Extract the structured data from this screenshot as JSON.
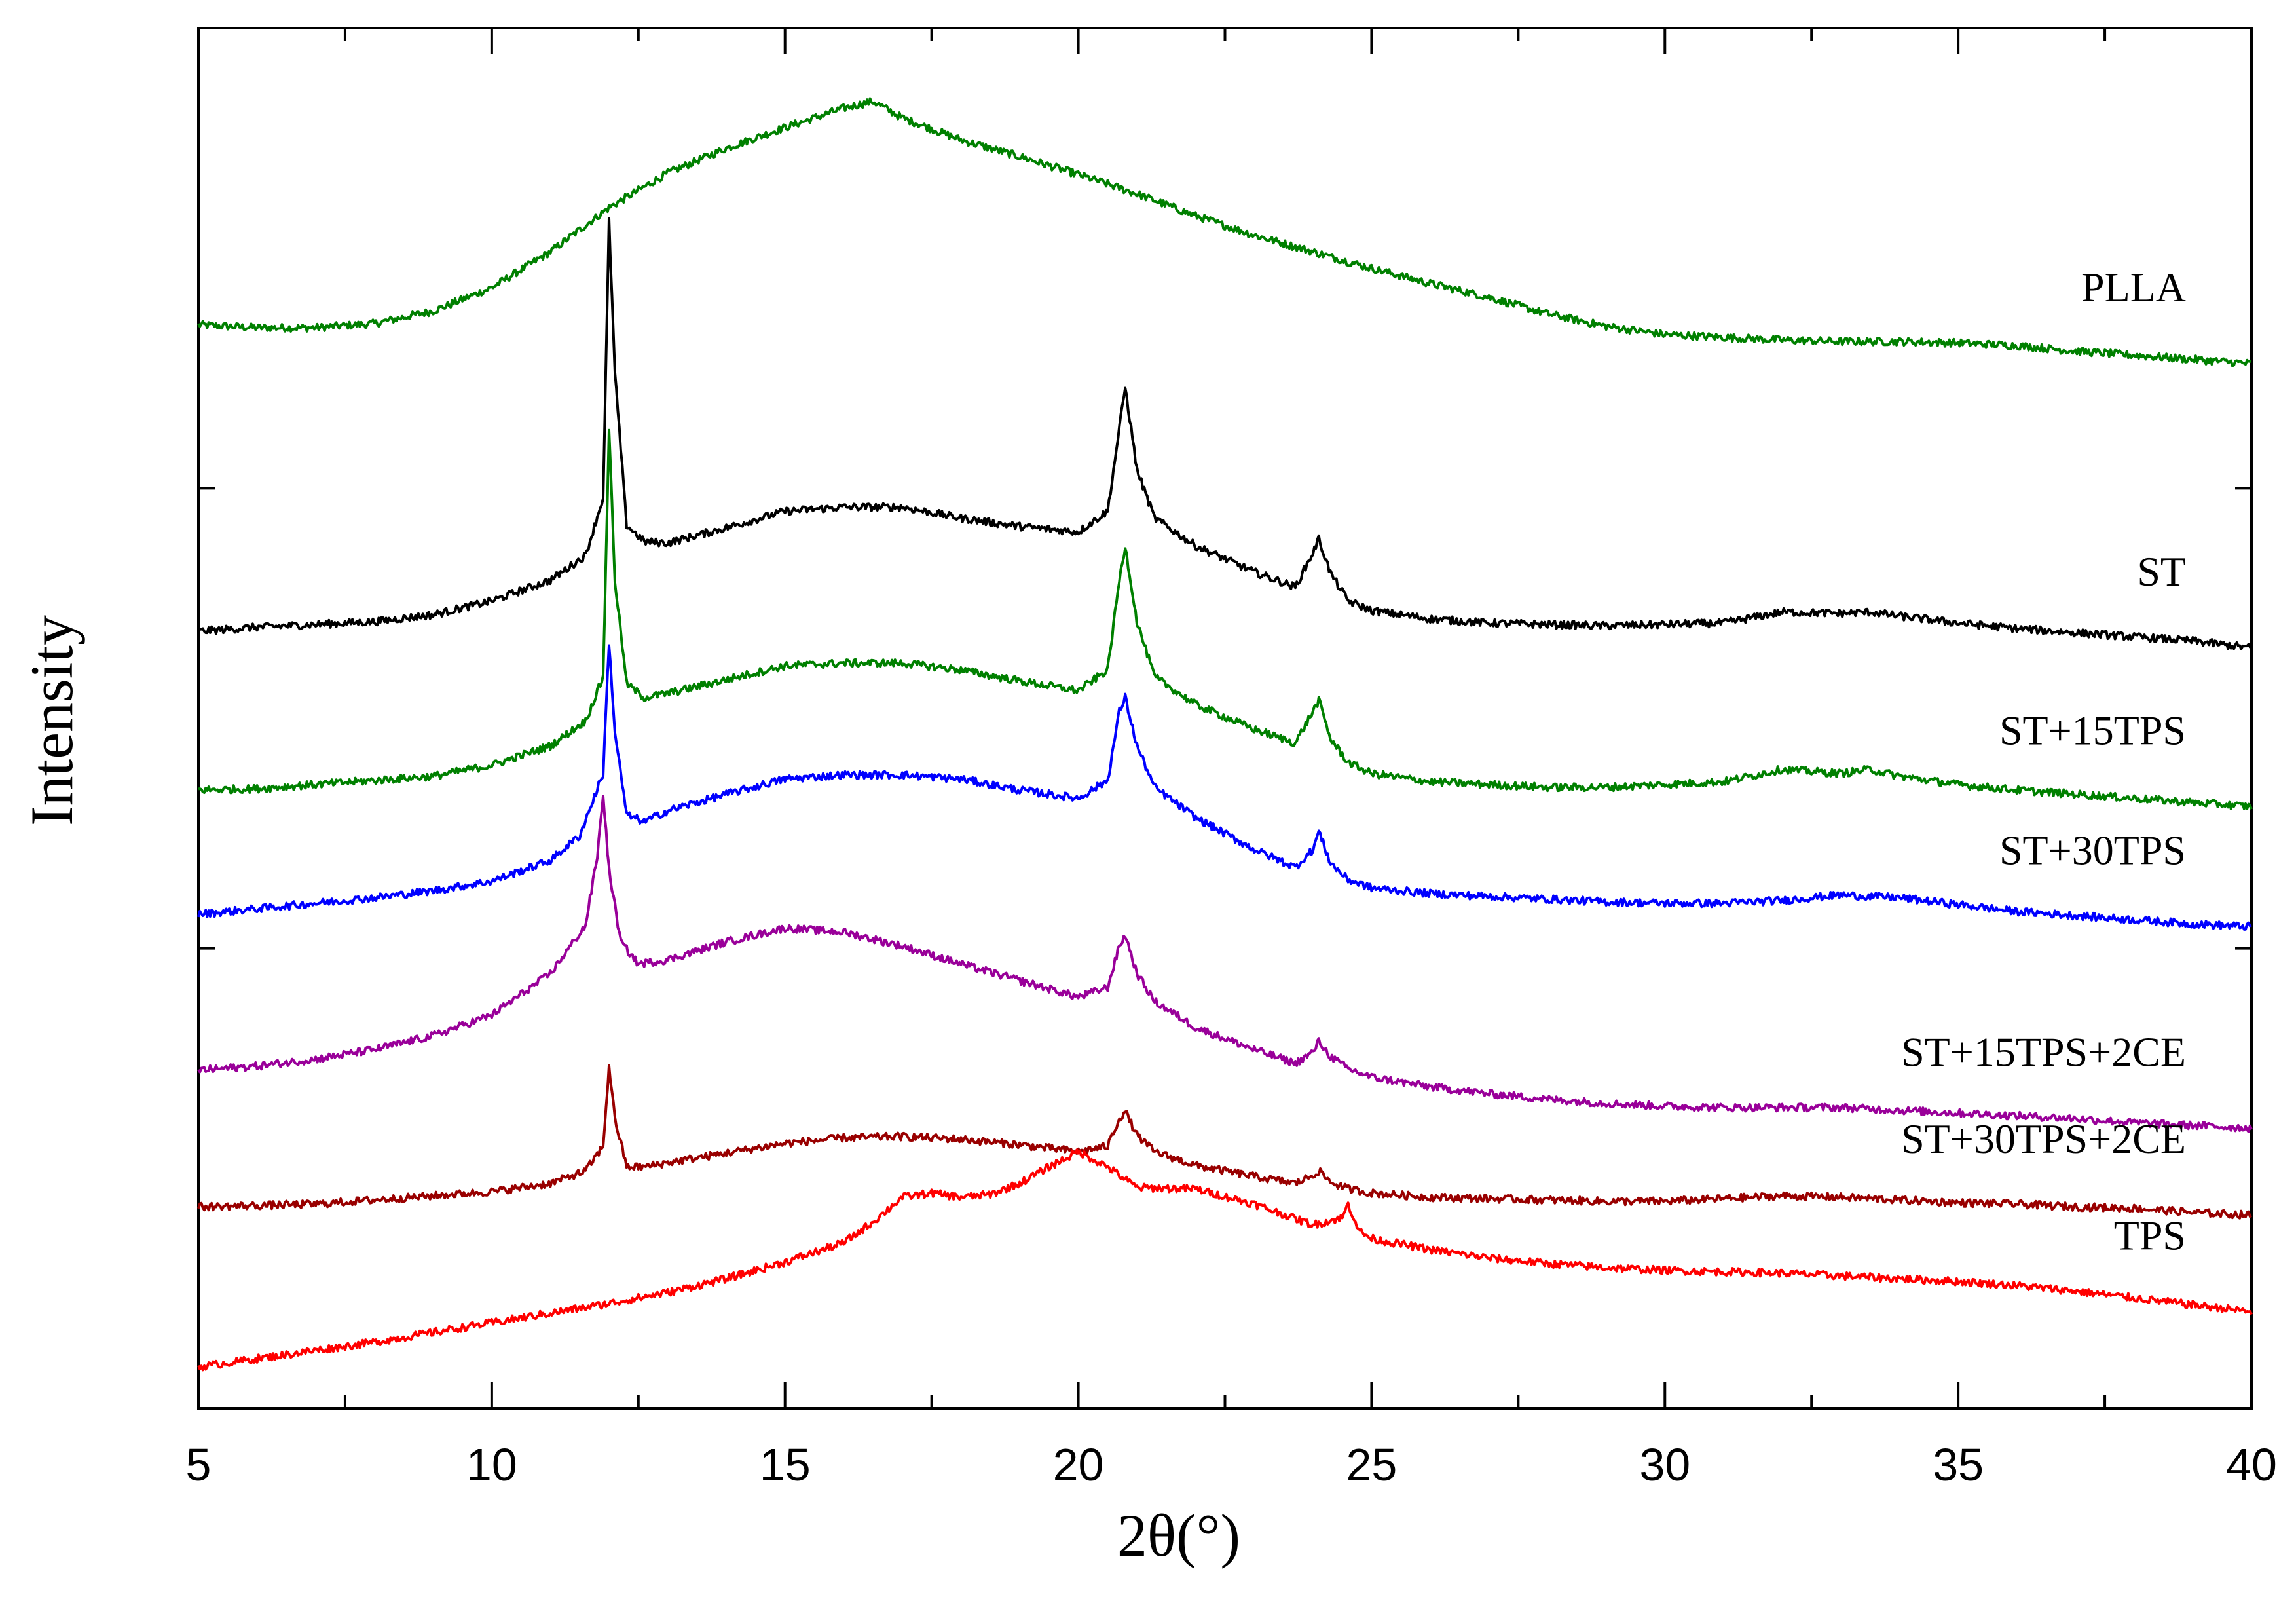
{
  "chart_data": {
    "type": "line",
    "xlabel": "2θ(°)",
    "ylabel": "Intensity",
    "xlim": [
      5,
      40
    ],
    "xticks": [
      5,
      10,
      15,
      20,
      25,
      30,
      35,
      40
    ],
    "ylim": [
      0,
      100
    ],
    "y_tick_labels_shown": false,
    "grid": false,
    "legend": "inline labels at right end of each curve",
    "series": [
      {
        "name": "PLLA",
        "color": "#008000",
        "x": [
          5,
          6,
          7,
          8,
          9,
          10,
          11,
          12,
          13,
          14,
          15,
          16,
          16.5,
          17,
          18,
          19,
          20,
          21,
          22,
          23,
          24,
          25,
          26,
          27,
          28,
          29,
          30,
          31,
          32,
          33,
          34,
          35,
          36,
          37,
          38,
          39,
          40
        ],
        "y": [
          78.5,
          78.3,
          78.3,
          78.6,
          79.5,
          81.2,
          83.8,
          87.0,
          89.5,
          91.3,
          92.8,
          94.2,
          94.7,
          93.5,
          91.9,
          90.7,
          89.4,
          88.0,
          86.4,
          85.0,
          83.8,
          82.6,
          81.5,
          80.5,
          79.3,
          78.4,
          77.8,
          77.6,
          77.4,
          77.3,
          77.3,
          77.2,
          77.0,
          76.6,
          76.3,
          76.0,
          75.7
        ]
      },
      {
        "name": "ST",
        "color": "#000000",
        "x": [
          5,
          6,
          7,
          8,
          9,
          10,
          11,
          11.6,
          11.9,
          12.0,
          12.1,
          12.3,
          12.6,
          13,
          14,
          15,
          16,
          17,
          18,
          19,
          20,
          20.5,
          20.7,
          20.8,
          21.0,
          21.3,
          22,
          23,
          23.7,
          24.0,
          24.1,
          24.3,
          24.6,
          25,
          26,
          27,
          28,
          29,
          30,
          31,
          32,
          33,
          33.5,
          34,
          35,
          36,
          37,
          38,
          39,
          40
        ],
        "y": [
          56.3,
          56.6,
          56.8,
          57.0,
          57.5,
          58.5,
          60.0,
          61.8,
          66,
          86,
          75,
          64,
          62.8,
          62.7,
          63.8,
          65.0,
          65.3,
          65.3,
          64.5,
          63.9,
          63.5,
          65,
          71,
          74.0,
          68,
          64.5,
          62.5,
          60.6,
          59.5,
          62.0,
          63.0,
          60.5,
          58.5,
          57.8,
          57.2,
          56.9,
          56.8,
          56.7,
          56.8,
          56.9,
          57.7,
          57.6,
          57.7,
          57.4,
          56.9,
          56.5,
          56.2,
          55.9,
          55.6,
          55.1
        ]
      },
      {
        "name": "ST+15TPS",
        "color": "#008000",
        "x": [
          5,
          6,
          7,
          8,
          9,
          10,
          11,
          11.6,
          11.9,
          12.0,
          12.1,
          12.3,
          12.6,
          13,
          14,
          15,
          16,
          17,
          18,
          19,
          20,
          20.5,
          20.7,
          20.8,
          21.0,
          21.3,
          22,
          23,
          23.7,
          24.0,
          24.1,
          24.3,
          24.6,
          25,
          26,
          27,
          28,
          29,
          30,
          31,
          32,
          33,
          33.5,
          34,
          35,
          36,
          37,
          38,
          39,
          40
        ],
        "y": [
          44.8,
          44.9,
          45.2,
          45.5,
          45.8,
          46.6,
          48.0,
          49.8,
          53,
          71,
          60,
          52.5,
          51.5,
          51.8,
          52.8,
          53.8,
          54.0,
          54.0,
          53.5,
          52.7,
          52.0,
          53.5,
          60,
          62.5,
          57,
          53.0,
          51.0,
          49.2,
          48.2,
          50.5,
          51.3,
          48.5,
          46.8,
          46.0,
          45.4,
          45.2,
          45.0,
          45.0,
          45.2,
          45.4,
          46.3,
          46.0,
          46.3,
          45.8,
          45.2,
          44.8,
          44.5,
          44.2,
          43.9,
          43.6
        ]
      },
      {
        "name": "ST+30TPS",
        "color": "#0000ff",
        "x": [
          5,
          6,
          7,
          8,
          9,
          10,
          11,
          11.5,
          11.9,
          12.0,
          12.1,
          12.3,
          12.6,
          13,
          14,
          15,
          16,
          17,
          18,
          19,
          20,
          20.5,
          20.7,
          20.8,
          21.0,
          21.3,
          22,
          23,
          23.7,
          24.0,
          24.1,
          24.3,
          24.6,
          25,
          26,
          27,
          28,
          29,
          30,
          31,
          32,
          33,
          34,
          35,
          36,
          37,
          38,
          39,
          40
        ],
        "y": [
          35.8,
          36.2,
          36.6,
          37.0,
          37.5,
          38.2,
          39.7,
          41.5,
          46,
          55.5,
          49,
          43.0,
          42.5,
          43.3,
          44.5,
          45.6,
          45.9,
          45.9,
          45.6,
          44.8,
          44.2,
          45.5,
          50.5,
          51.5,
          48,
          45.0,
          42.8,
          40.5,
          39.2,
          40.5,
          41.8,
          39.5,
          38.3,
          37.7,
          37.3,
          37.1,
          36.9,
          36.7,
          36.6,
          36.6,
          36.8,
          37.2,
          37.0,
          36.5,
          36.0,
          35.7,
          35.4,
          35.1,
          34.9
        ]
      },
      {
        "name": "ST+15TPS+2CE",
        "color": "#990099",
        "x": [
          5,
          6,
          7,
          8,
          9,
          10,
          11,
          11.6,
          11.8,
          11.9,
          12.0,
          12.2,
          12.5,
          13,
          14,
          15,
          16,
          17,
          18,
          19,
          20,
          20.5,
          20.7,
          20.8,
          21.0,
          21.3,
          22,
          23,
          23.7,
          24.0,
          24.1,
          24.3,
          24.6,
          25,
          26,
          27,
          28,
          29,
          30,
          31,
          32,
          33,
          34,
          35,
          36,
          37,
          38,
          39,
          40
        ],
        "y": [
          24.5,
          24.8,
          25.3,
          26.0,
          27.0,
          28.5,
          31.5,
          35.0,
          40,
          44.5,
          39,
          33.8,
          32.2,
          32.5,
          33.8,
          34.8,
          34.5,
          33.5,
          32.2,
          31.0,
          29.8,
          30.5,
          33.5,
          34.3,
          31.5,
          29.5,
          27.6,
          26.0,
          25.0,
          25.8,
          26.6,
          25.5,
          24.6,
          24.0,
          23.3,
          22.8,
          22.4,
          22.1,
          21.9,
          21.8,
          21.8,
          21.8,
          21.6,
          21.4,
          21.2,
          21.0,
          20.7,
          20.5,
          20.3
        ]
      },
      {
        "name": "ST+30TPS+2CE",
        "color": "#990000",
        "x": [
          5,
          6,
          7,
          8,
          9,
          10,
          11,
          11.6,
          11.9,
          12.0,
          12.1,
          12.3,
          12.6,
          13,
          14,
          15,
          16,
          17,
          18,
          19,
          20,
          20.5,
          20.7,
          20.8,
          21.0,
          21.3,
          22,
          23,
          23.7,
          24.0,
          24.1,
          24.3,
          24.6,
          25,
          26,
          27,
          28,
          29,
          30,
          31,
          32,
          33,
          34,
          35,
          36,
          37,
          38,
          39,
          40
        ],
        "y": [
          14.6,
          14.7,
          14.8,
          15.1,
          15.4,
          15.7,
          16.3,
          17.2,
          19,
          24.8,
          21,
          17.5,
          17.5,
          17.8,
          18.5,
          19.2,
          19.6,
          19.7,
          19.5,
          19.1,
          18.6,
          19.0,
          21.0,
          21.5,
          19.8,
          18.6,
          17.6,
          16.8,
          16.3,
          16.9,
          17.2,
          16.4,
          15.9,
          15.6,
          15.3,
          15.2,
          15.1,
          15.0,
          15.0,
          15.2,
          15.4,
          15.3,
          15.1,
          14.9,
          14.8,
          14.6,
          14.5,
          14.2,
          14.0
        ]
      },
      {
        "name": "TPS",
        "color": "#ff0000",
        "x": [
          5,
          6,
          7,
          8,
          9,
          10,
          11,
          12,
          13,
          14,
          15,
          16,
          16.5,
          17,
          17.5,
          18,
          18.5,
          19,
          19.5,
          20,
          20.5,
          21,
          22,
          23,
          24,
          24.5,
          24.6,
          24.8,
          25,
          26,
          27,
          28,
          29,
          30,
          31,
          32,
          33,
          34,
          35,
          36,
          37,
          38,
          39,
          40
        ],
        "y": [
          3.0,
          3.6,
          4.2,
          4.8,
          5.5,
          6.2,
          6.9,
          7.6,
          8.4,
          9.4,
          10.6,
          12.0,
          13.5,
          15.3,
          15.6,
          15.3,
          15.5,
          16.3,
          17.5,
          18.6,
          17.5,
          16.0,
          15.9,
          14.8,
          13.3,
          13.8,
          14.8,
          12.8,
          12.3,
          11.5,
          10.9,
          10.5,
          10.2,
          10.0,
          9.9,
          9.8,
          9.6,
          9.4,
          9.2,
          8.9,
          8.5,
          8.0,
          7.5,
          7.0
        ]
      }
    ]
  }
}
